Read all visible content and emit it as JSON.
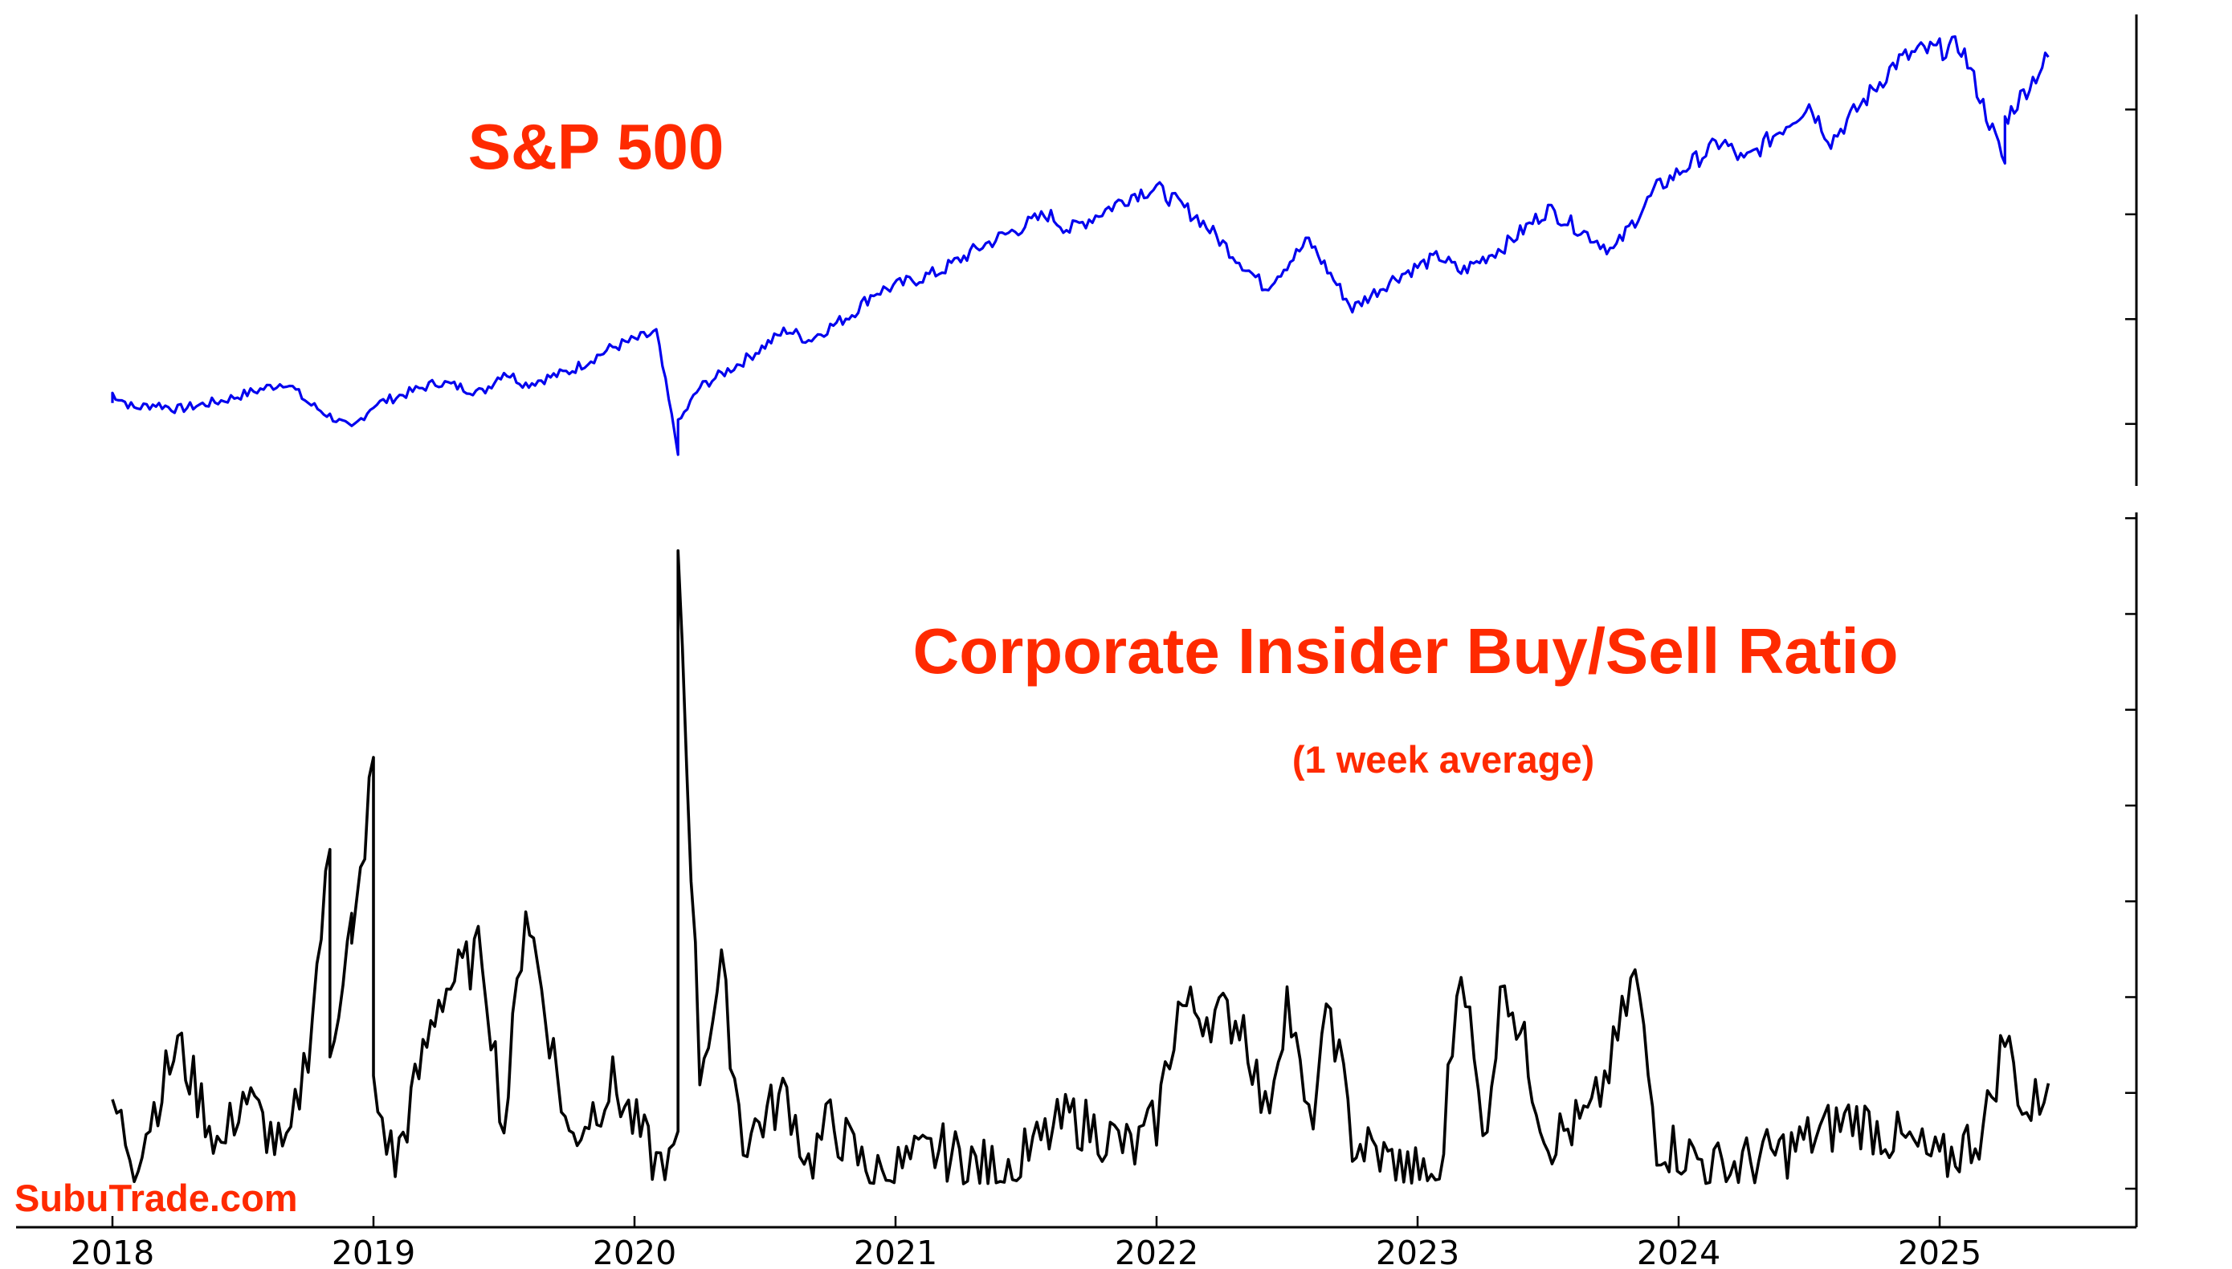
{
  "colors": {
    "accent": "#ff2a00",
    "sp_line": "#0000ee",
    "insider_line": "#000000"
  },
  "watermark": "SubuTrade.com",
  "chart_data": [
    {
      "type": "line",
      "title": "S&P 500",
      "x_range": [
        "2018-01",
        "2025-06"
      ],
      "y_scale": "linear (unlabeled)",
      "grid": false,
      "series": [
        {
          "name": "S&P 500",
          "x": [
            "2018-01",
            "2018-01",
            "2018-02",
            "2018-03",
            "2018-04",
            "2018-06",
            "2018-09",
            "2018-10",
            "2018-12",
            "2019-01",
            "2019-04",
            "2019-06",
            "2019-07",
            "2019-08",
            "2019-10",
            "2019-12",
            "2020-02",
            "2020-03",
            "2020-03",
            "2020-04",
            "2020-06",
            "2020-08",
            "2020-09",
            "2020-11",
            "2020-12",
            "2021-03",
            "2021-05",
            "2021-08",
            "2021-09",
            "2021-12",
            "2022-01",
            "2022-03",
            "2022-06",
            "2022-08",
            "2022-10",
            "2022-12",
            "2023-02",
            "2023-03",
            "2023-05",
            "2023-07",
            "2023-10",
            "2023-12",
            "2024-03",
            "2024-04",
            "2024-07",
            "2024-08",
            "2024-11",
            "2024-12",
            "2025-02",
            "2025-04",
            "2025-04",
            "2025-06"
          ],
          "values": [
            2700,
            2790,
            2650,
            2690,
            2640,
            2720,
            2900,
            2700,
            2450,
            2680,
            2900,
            2800,
            3000,
            2880,
            3000,
            3230,
            3370,
            2240,
            2500,
            2850,
            3100,
            3400,
            3300,
            3550,
            3750,
            3950,
            4200,
            4500,
            4350,
            4700,
            4750,
            4450,
            3800,
            4250,
            3600,
            3900,
            4100,
            3950,
            4200,
            4550,
            4150,
            4750,
            5200,
            5000,
            5550,
            5200,
            5950,
            6050,
            6100,
            4980,
            5400,
            6000
          ]
        }
      ]
    },
    {
      "type": "line",
      "title": "Corporate Insider Buy/Sell Ratio",
      "subtitle": "(1 week average)",
      "x_range": [
        "2018-01",
        "2025-06"
      ],
      "xticks": [
        "2018",
        "2019",
        "2020",
        "2021",
        "2022",
        "2023",
        "2024",
        "2025"
      ],
      "y_scale": "linear (unlabeled)",
      "grid": false,
      "series": [
        {
          "name": "Corporate Insider Buy/Sell Ratio",
          "x": [
            "2018-01",
            "2018-02",
            "2018-04",
            "2018-06",
            "2018-07",
            "2018-09",
            "2018-10",
            "2018-11",
            "2018-11",
            "2018-12",
            "2018-12",
            "2019-01",
            "2019-01",
            "2019-02",
            "2019-04",
            "2019-06",
            "2019-07",
            "2019-08",
            "2019-10",
            "2019-12",
            "2020-02",
            "2020-03",
            "2020-03",
            "2020-04",
            "2020-05",
            "2020-06",
            "2020-08",
            "2020-09",
            "2020-10",
            "2020-12",
            "2021-03",
            "2021-06",
            "2021-09",
            "2021-12",
            "2022-01",
            "2022-02",
            "2022-05",
            "2022-06",
            "2022-07",
            "2022-08",
            "2022-09",
            "2022-10",
            "2022-12",
            "2023-02",
            "2023-03",
            "2023-04",
            "2023-05",
            "2023-07",
            "2023-09",
            "2023-10",
            "2023-11",
            "2023-12",
            "2024-03",
            "2024-06",
            "2024-09",
            "2024-12",
            "2025-01",
            "2025-03",
            "2025-04",
            "2025-05",
            "2025-06"
          ],
          "values": [
            0.18,
            0.06,
            0.3,
            0.08,
            0.2,
            0.06,
            0.3,
            0.7,
            0.3,
            0.55,
            0.48,
            0.9,
            0.2,
            0.05,
            0.4,
            0.5,
            0.12,
            0.6,
            0.1,
            0.22,
            0.05,
            0.07,
            1.35,
            0.25,
            0.45,
            0.1,
            0.2,
            0.05,
            0.14,
            0.02,
            0.08,
            0.03,
            0.15,
            0.08,
            0.14,
            0.38,
            0.35,
            0.15,
            0.4,
            0.12,
            0.38,
            0.1,
            0.05,
            0.02,
            0.5,
            0.1,
            0.45,
            0.1,
            0.15,
            0.28,
            0.45,
            0.1,
            0.04,
            0.08,
            0.15,
            0.08,
            0.05,
            0.12,
            0.32,
            0.15,
            0.22
          ]
        }
      ]
    }
  ]
}
